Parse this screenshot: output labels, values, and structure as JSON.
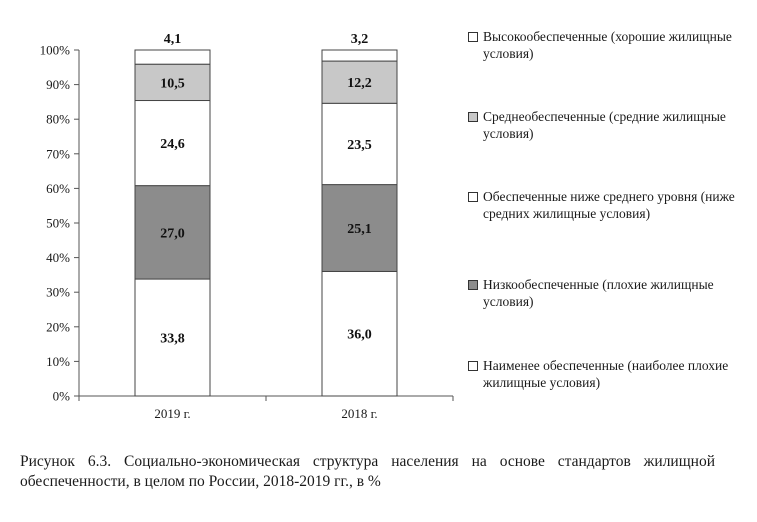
{
  "chart_data": {
    "type": "bar",
    "stacked": true,
    "percent_stacked": true,
    "categories": [
      "2019 г.",
      "2018 г."
    ],
    "ylim": [
      0,
      100
    ],
    "y_ticks": [
      "0%",
      "10%",
      "20%",
      "30%",
      "40%",
      "50%",
      "60%",
      "70%",
      "80%",
      "90%",
      "100%"
    ],
    "series": [
      {
        "name": "Наименее обеспеченные (наиболее плохие жилищные условия)",
        "values": [
          33.8,
          36.0
        ],
        "labels": [
          "33,8",
          "36,0"
        ],
        "color": "#ffffff"
      },
      {
        "name": "Низкообеспеченные (плохие жилищные условия)",
        "values": [
          27.0,
          25.1
        ],
        "labels": [
          "27,0",
          "25,1"
        ],
        "color": "#8c8c8c"
      },
      {
        "name": "Обеспеченные ниже среднего уровня (ниже средних жилищные условия)",
        "values": [
          24.6,
          23.5
        ],
        "labels": [
          "24,6",
          "23,5"
        ],
        "color": "#ffffff"
      },
      {
        "name": "Среднеобеспеченные (средние жилищные условия)",
        "values": [
          10.5,
          12.2
        ],
        "labels": [
          "10,5",
          "12,2"
        ],
        "color": "#c8c8c8"
      },
      {
        "name": "Высокообеспеченные (хорошие жилищные условия)",
        "values": [
          4.1,
          3.2
        ],
        "labels": [
          "4,1",
          "3,2"
        ],
        "color": "#ffffff"
      }
    ],
    "legend_position": "right",
    "grid": false
  },
  "legend": [
    {
      "text": "Высокообеспеченные (хорошие жилищные условия)",
      "color": "#ffffff"
    },
    {
      "text": "Среднеобеспеченные (средние жилищные условия)",
      "color": "#c8c8c8"
    },
    {
      "text": "Обеспеченные ниже среднего уровня (ниже средних жилищные условия)",
      "color": "#ffffff"
    },
    {
      "text": "Низкообеспеченные (плохие жилищные условия)",
      "color": "#8c8c8c"
    },
    {
      "text": "Наименее обеспеченные (наиболее плохие жилищные условия)",
      "color": "#ffffff"
    }
  ],
  "caption": "Рисунок 6.3. Социально-экономическая структура населения на основе стандартов жилищной обеспеченности, в целом по России, 2018-2019 гг., в %"
}
